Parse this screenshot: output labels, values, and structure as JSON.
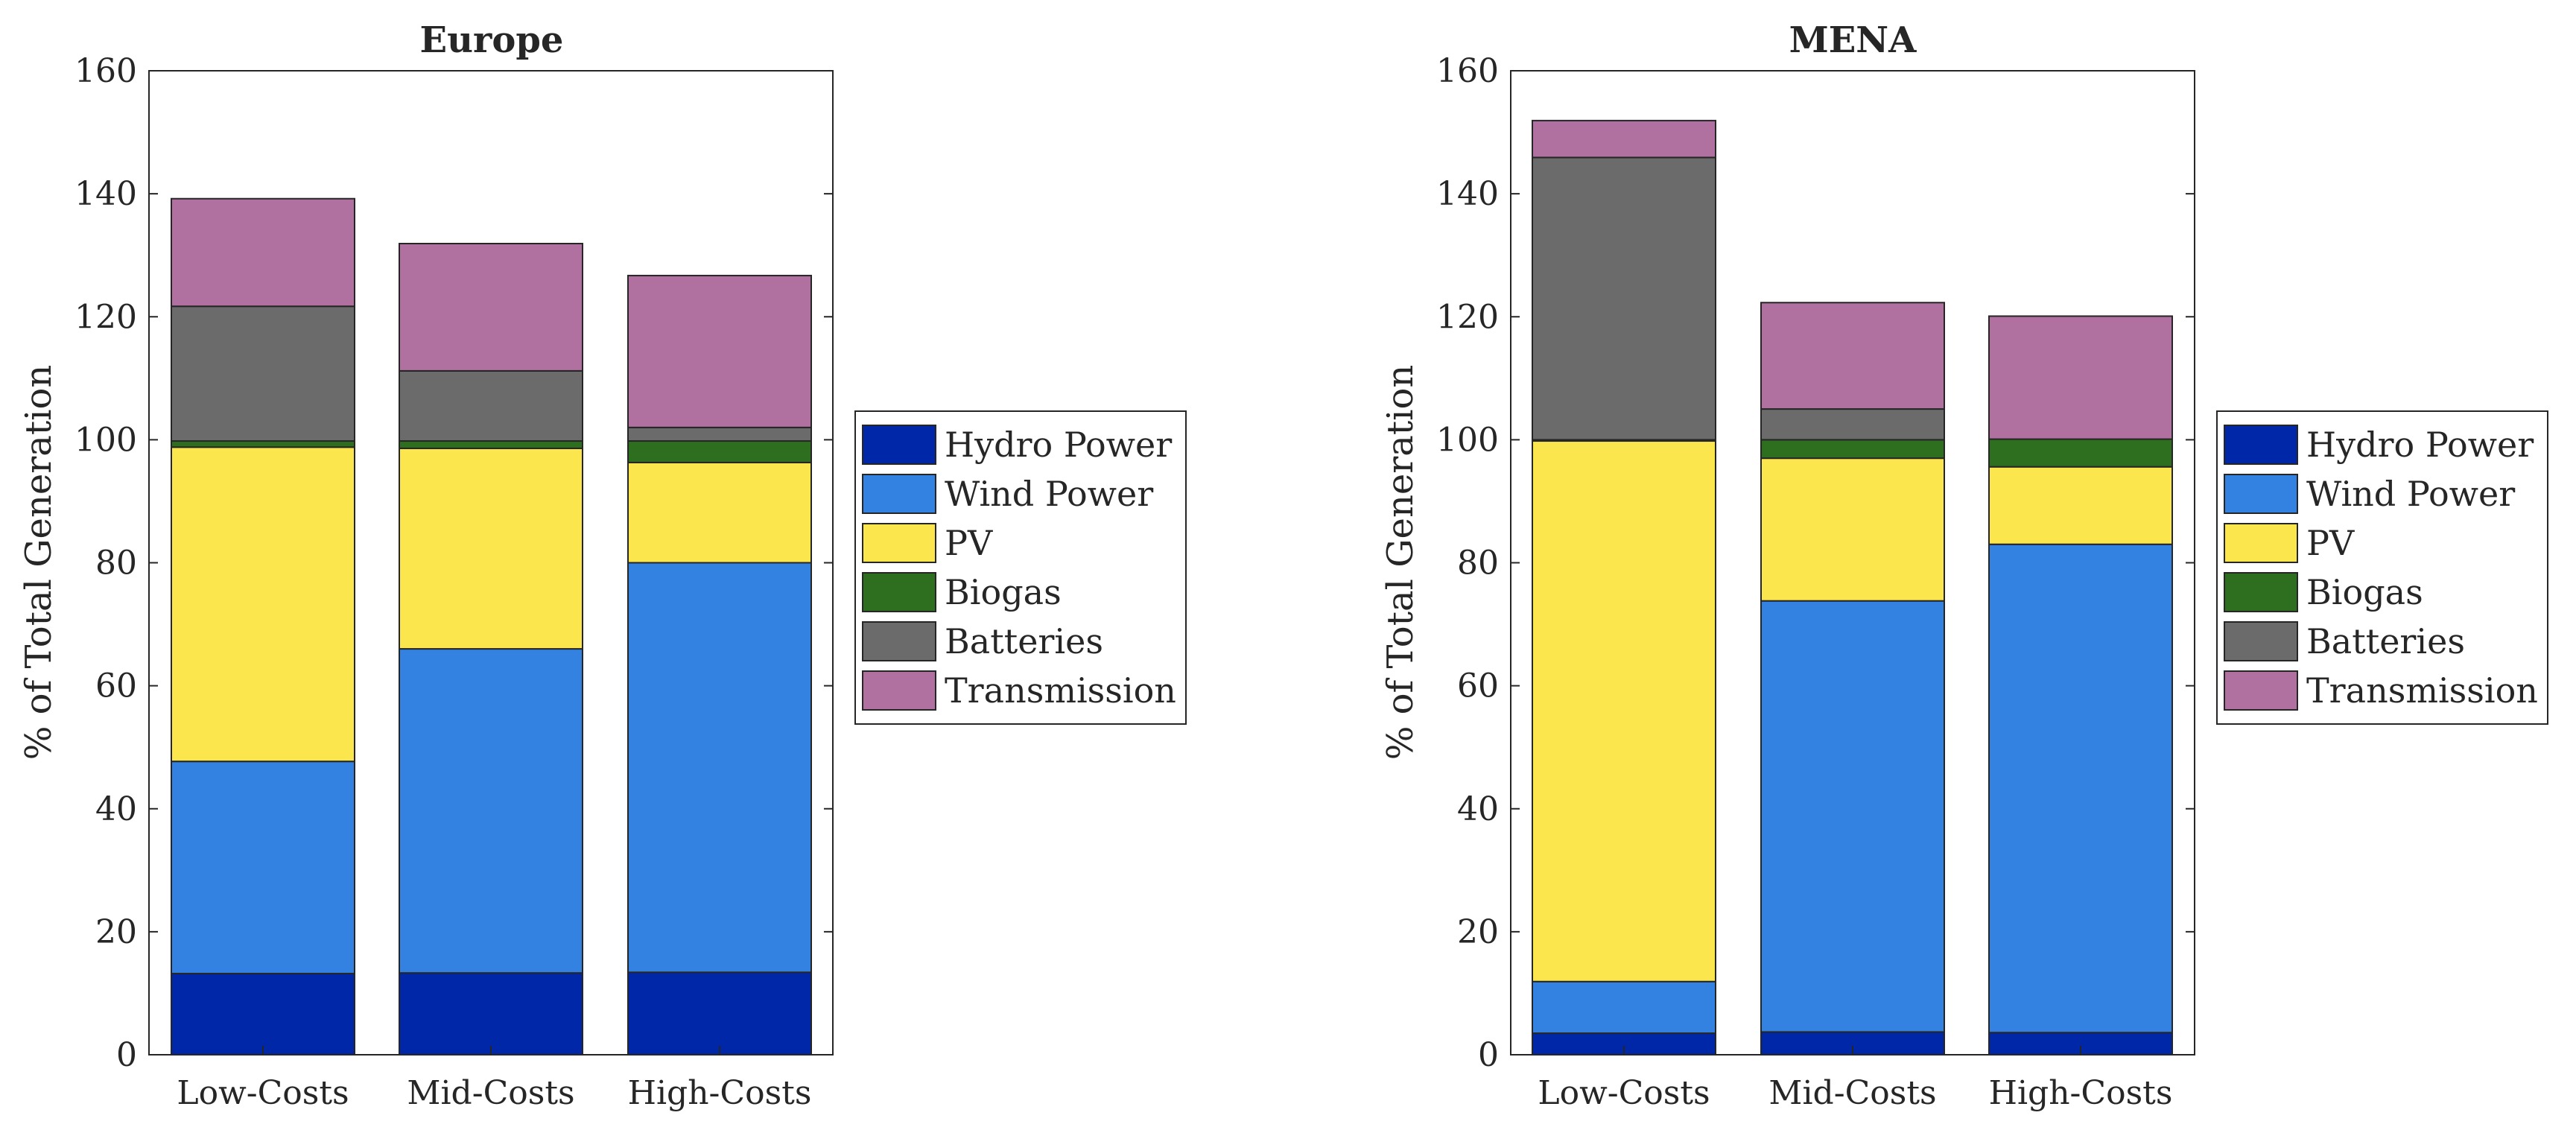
{
  "figure": {
    "ylabel": "% of Total Generation",
    "components": [
      {
        "name": "Hydro Power",
        "color": "#0027a8"
      },
      {
        "name": "Wind Power",
        "color": "#3381e0"
      },
      {
        "name": "PV",
        "color": "#fbe64d"
      },
      {
        "name": "Biogas",
        "color": "#2e6e1f"
      },
      {
        "name": "Batteries",
        "color": "#6b6b6b"
      },
      {
        "name": "Transmission",
        "color": "#b070a0"
      }
    ]
  },
  "chart_data": [
    {
      "type": "bar",
      "stacked": true,
      "title": "Europe",
      "xlabel": "",
      "ylabel": "% of Total Generation",
      "ylim": [
        0,
        160
      ],
      "yticks": [
        0,
        20,
        40,
        60,
        80,
        100,
        120,
        140,
        160
      ],
      "categories": [
        "Low-Costs",
        "Mid-Costs",
        "High-Costs"
      ],
      "legend_position": "right",
      "series": [
        {
          "name": "Hydro Power",
          "values": [
            13.2,
            13.3,
            13.4
          ]
        },
        {
          "name": "Wind Power",
          "values": [
            34.5,
            52.7,
            66.6
          ]
        },
        {
          "name": "PV",
          "values": [
            51.1,
            32.6,
            16.3
          ]
        },
        {
          "name": "Biogas",
          "values": [
            1.0,
            1.2,
            3.5
          ]
        },
        {
          "name": "Batteries",
          "values": [
            21.9,
            11.4,
            2.2
          ]
        },
        {
          "name": "Transmission",
          "values": [
            17.5,
            20.7,
            24.7
          ]
        }
      ]
    },
    {
      "type": "bar",
      "stacked": true,
      "title": "MENA",
      "xlabel": "",
      "ylabel": "% of Total Generation",
      "ylim": [
        0,
        160
      ],
      "yticks": [
        0,
        20,
        40,
        60,
        80,
        100,
        120,
        140,
        160
      ],
      "categories": [
        "Low-Costs",
        "Mid-Costs",
        "High-Costs"
      ],
      "legend_position": "right",
      "series": [
        {
          "name": "Hydro Power",
          "values": [
            3.5,
            3.7,
            3.6
          ]
        },
        {
          "name": "Wind Power",
          "values": [
            8.4,
            70.1,
            79.4
          ]
        },
        {
          "name": "PV",
          "values": [
            87.9,
            23.2,
            12.6
          ]
        },
        {
          "name": "Biogas",
          "values": [
            0.2,
            3.0,
            4.5
          ]
        },
        {
          "name": "Batteries",
          "values": [
            45.9,
            5.0,
            0.0
          ]
        },
        {
          "name": "Transmission",
          "values": [
            6.0,
            17.3,
            20.0
          ]
        }
      ]
    }
  ]
}
